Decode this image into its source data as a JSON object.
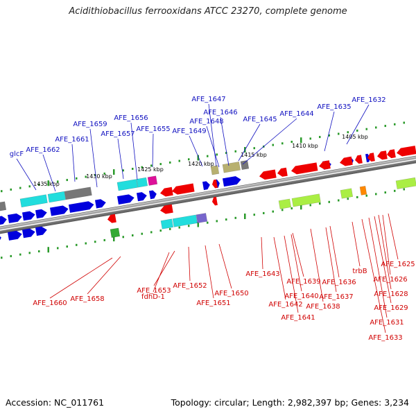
{
  "title": "Acidithiobacillus ferrooxidans ATCC 23270, complete genome",
  "footer": {
    "accession": "Accession: NC_011761",
    "summary": "Topology: circular; Length: 2,982,397 bp; Genes: 3,234"
  },
  "colors": {
    "backbone": "#8a8a8a",
    "forward_label": "#1010c0",
    "reverse_label": "#d00000",
    "tick": "#2a9a2a",
    "cds_forward": "#0000dd",
    "cds_reverse": "#ee0000",
    "cog_cyan": "#22dddd",
    "cog_gray": "#777777",
    "cog_magenta": "#dd1199",
    "cog_olive": "#b8b070",
    "cog_purple": "#7766cc",
    "cog_lime": "#aaee44",
    "cog_green": "#33aa33",
    "cog_orange": "#ff8800"
  },
  "scale_labels": [
    "1435 kbp",
    "1430 kbp",
    "1425 kbp",
    "1420 kbp",
    "1415 kbp",
    "1410 kbp",
    "1405 kbp"
  ],
  "forward_genes": [
    "glcF",
    "AFE_1662",
    "AFE_1661",
    "AFE_1659",
    "AFE_1657",
    "AFE_1656",
    "AFE_1655",
    "AFE_1649",
    "AFE_1648",
    "AFE_1647",
    "AFE_1646",
    "AFE_1645",
    "AFE_1644",
    "AFE_1635",
    "AFE_1632"
  ],
  "reverse_genes": [
    "AFE_1660",
    "AFE_1658",
    "fdhD-1",
    "AFE_1653",
    "AFE_1652",
    "AFE_1651",
    "AFE_1650",
    "AFE_1643",
    "AFE_1642",
    "AFE_1641",
    "AFE_1640",
    "AFE_1639",
    "AFE_1638",
    "AFE_1637",
    "AFE_1636",
    "trbB",
    "AFE_1633",
    "AFE_1631",
    "AFE_1629",
    "AFE_1628",
    "AFE_1626",
    "AFE_1625"
  ]
}
